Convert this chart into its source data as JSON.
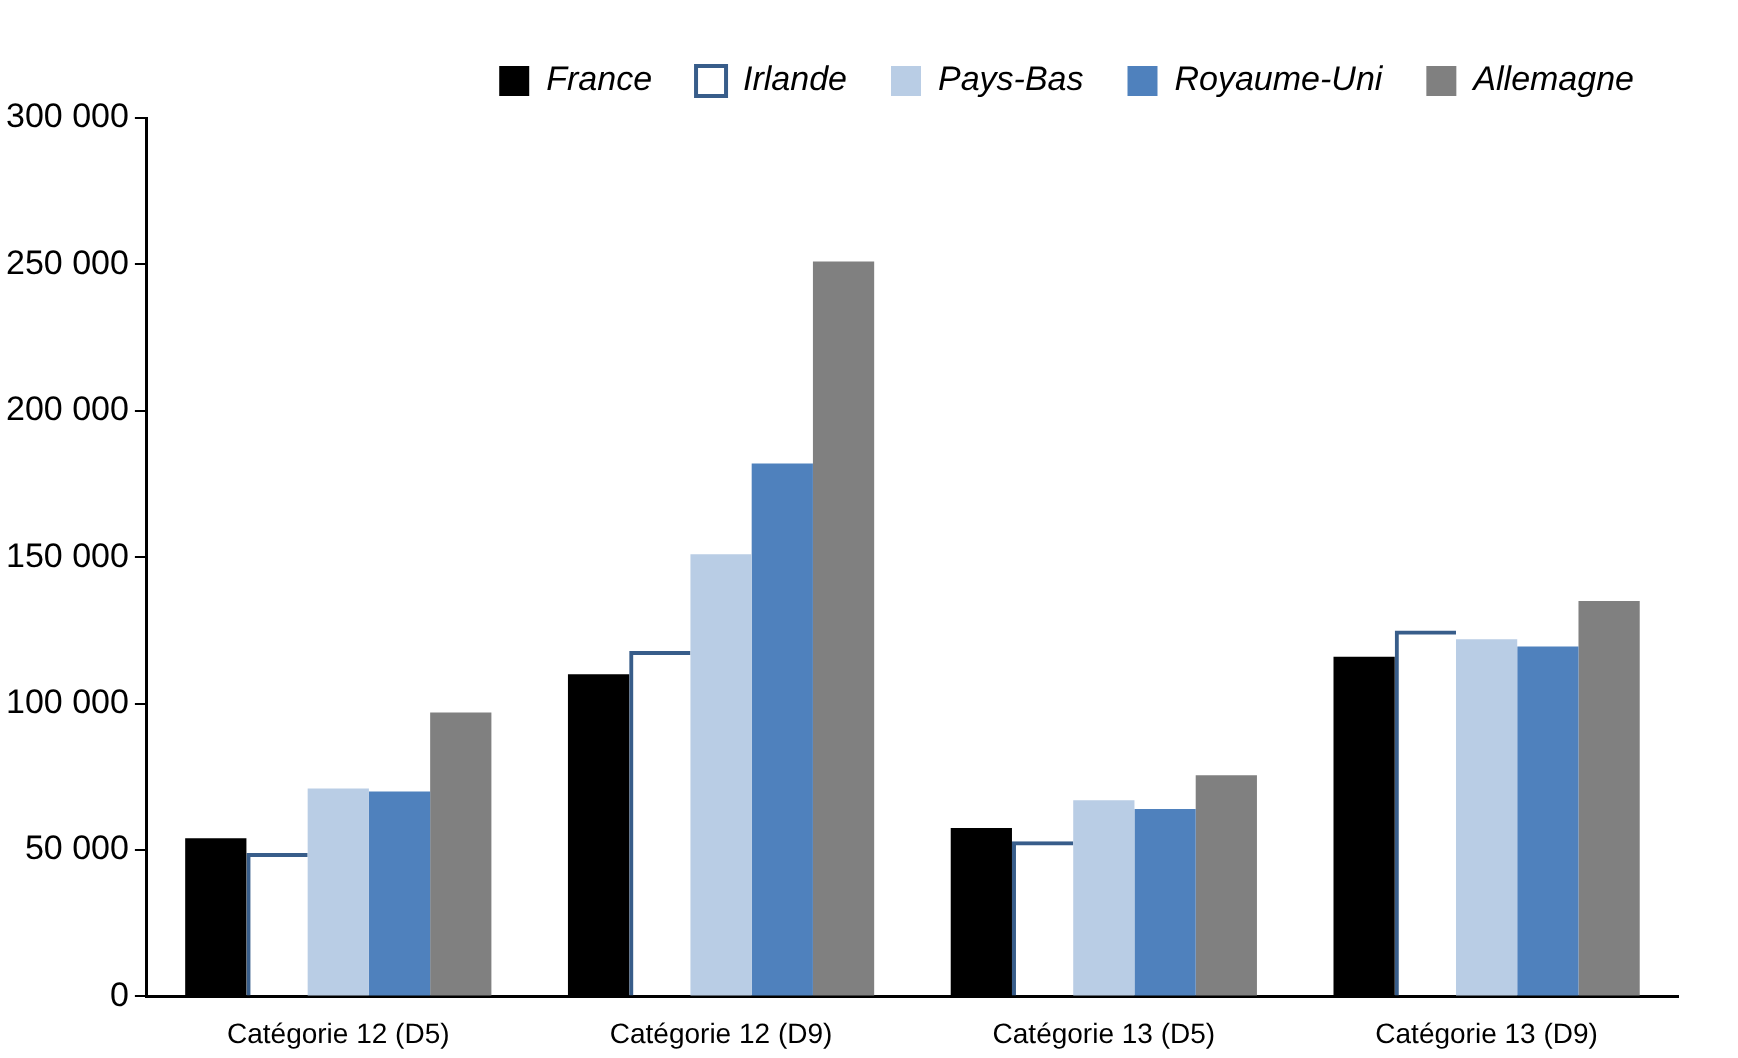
{
  "chart_data": {
    "type": "bar",
    "categories": [
      "Catégorie 12 (D5)",
      "Catégorie 12 (D9)",
      "Catégorie 13 (D5)",
      "Catégorie 13 (D9)"
    ],
    "series": [
      {
        "name": "France",
        "color": "#000000",
        "values": [
          54000,
          110000,
          57500,
          116000
        ]
      },
      {
        "name": "Irlande",
        "color": "#385d8a",
        "values": [
          49000,
          118000,
          53000,
          125000
        ]
      },
      {
        "name": "Pays-Bas",
        "color": "#b9cde5",
        "values": [
          71000,
          151000,
          67000,
          122000
        ]
      },
      {
        "name": "Royaume-Uni",
        "color": "#4f81bd",
        "values": [
          70000,
          182000,
          64000,
          119500
        ]
      },
      {
        "name": "Allemagne",
        "color": "#808080",
        "values": [
          97000,
          251000,
          75500,
          135000
        ]
      }
    ],
    "ylim": [
      0,
      300000
    ],
    "yticks": [
      {
        "value": 0,
        "label": "0"
      },
      {
        "value": 50000,
        "label": "50 000"
      },
      {
        "value": 100000,
        "label": "100 000"
      },
      {
        "value": 150000,
        "label": "150 000"
      },
      {
        "value": 200000,
        "label": "200 000"
      },
      {
        "value": 250000,
        "label": "250 000"
      },
      {
        "value": 300000,
        "label": "300 000"
      }
    ],
    "grid": false,
    "legend": "top"
  }
}
